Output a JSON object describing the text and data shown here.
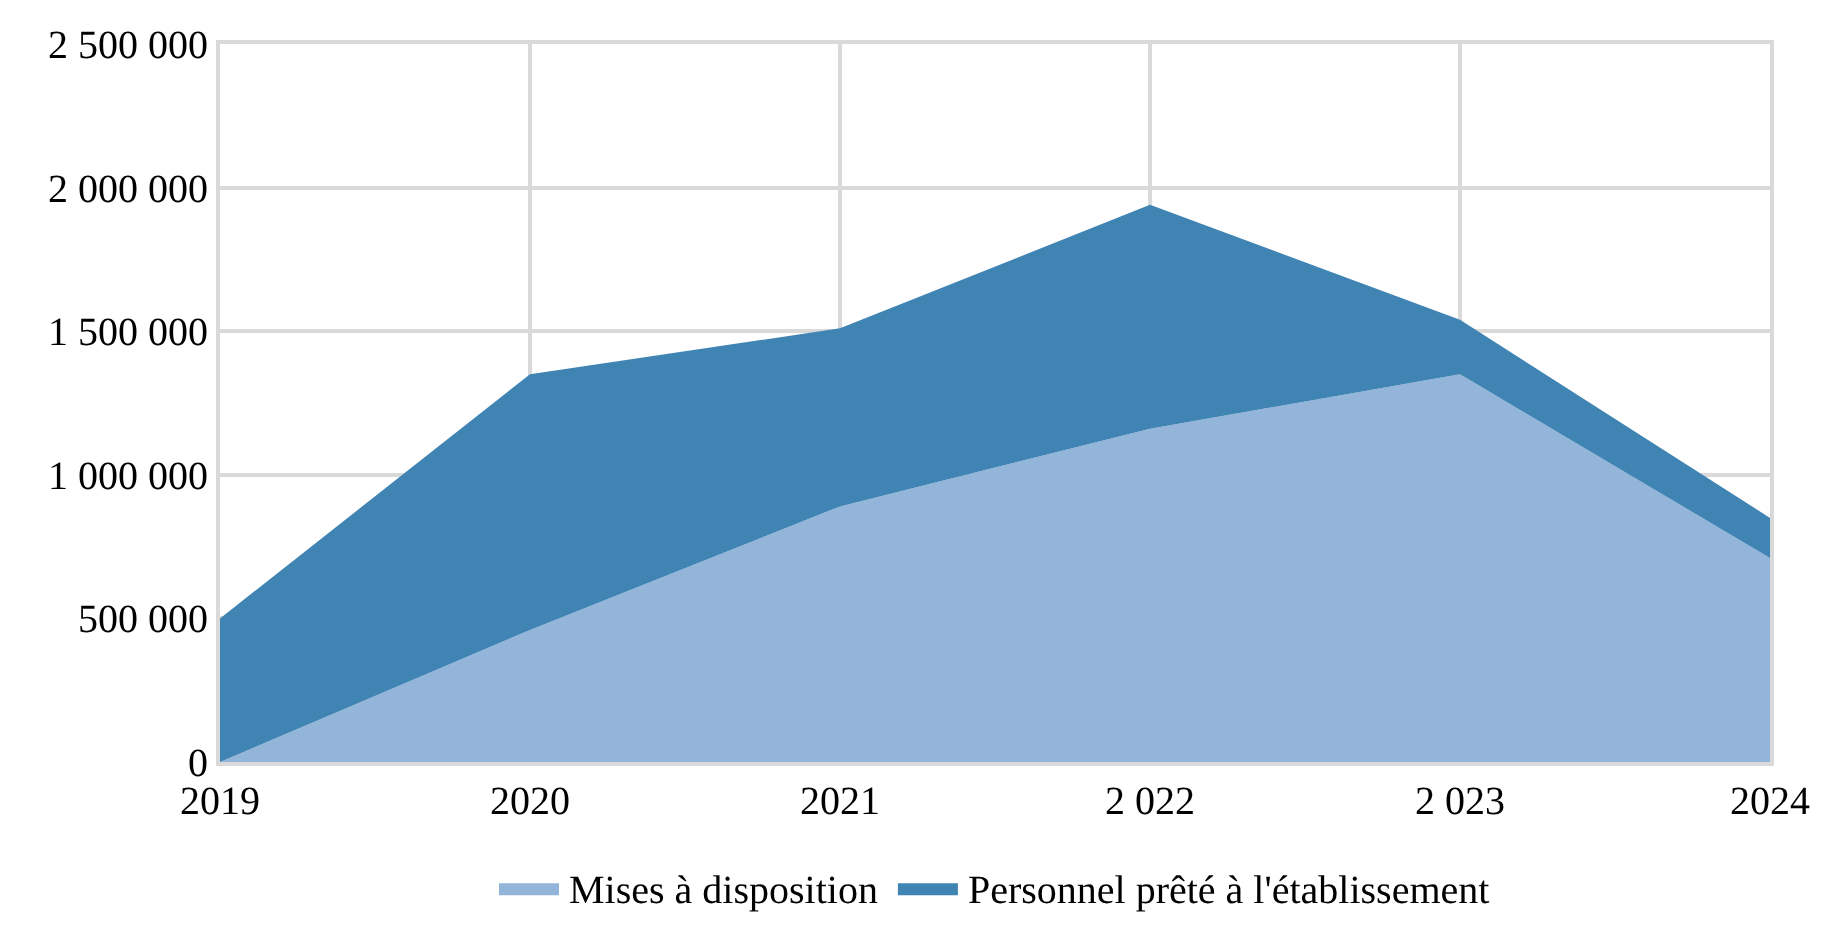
{
  "chart_data": {
    "type": "area",
    "stacked": true,
    "categories": [
      "2019",
      "2020",
      "2021",
      "2 022",
      "2 023",
      "2024"
    ],
    "series": [
      {
        "name": "Mises à disposition",
        "color": "#93b5d9",
        "values": [
          0,
          460000,
          890000,
          1160000,
          1350000,
          710000
        ]
      },
      {
        "name": "Personnel prêté à l'établissement",
        "color": "#4084b4",
        "values": [
          500000,
          890000,
          620000,
          780000,
          190000,
          140000
        ]
      }
    ],
    "ylim": [
      0,
      2500000
    ],
    "yticks": [
      {
        "value": 0,
        "label": "0"
      },
      {
        "value": 500000,
        "label": "500 000"
      },
      {
        "value": 1000000,
        "label": "1 000 000"
      },
      {
        "value": 1500000,
        "label": "1 500 000"
      },
      {
        "value": 2000000,
        "label": "2 000 000"
      },
      {
        "value": 2500000,
        "label": "2 500 000"
      }
    ],
    "grid": true,
    "legend": "bottom"
  }
}
